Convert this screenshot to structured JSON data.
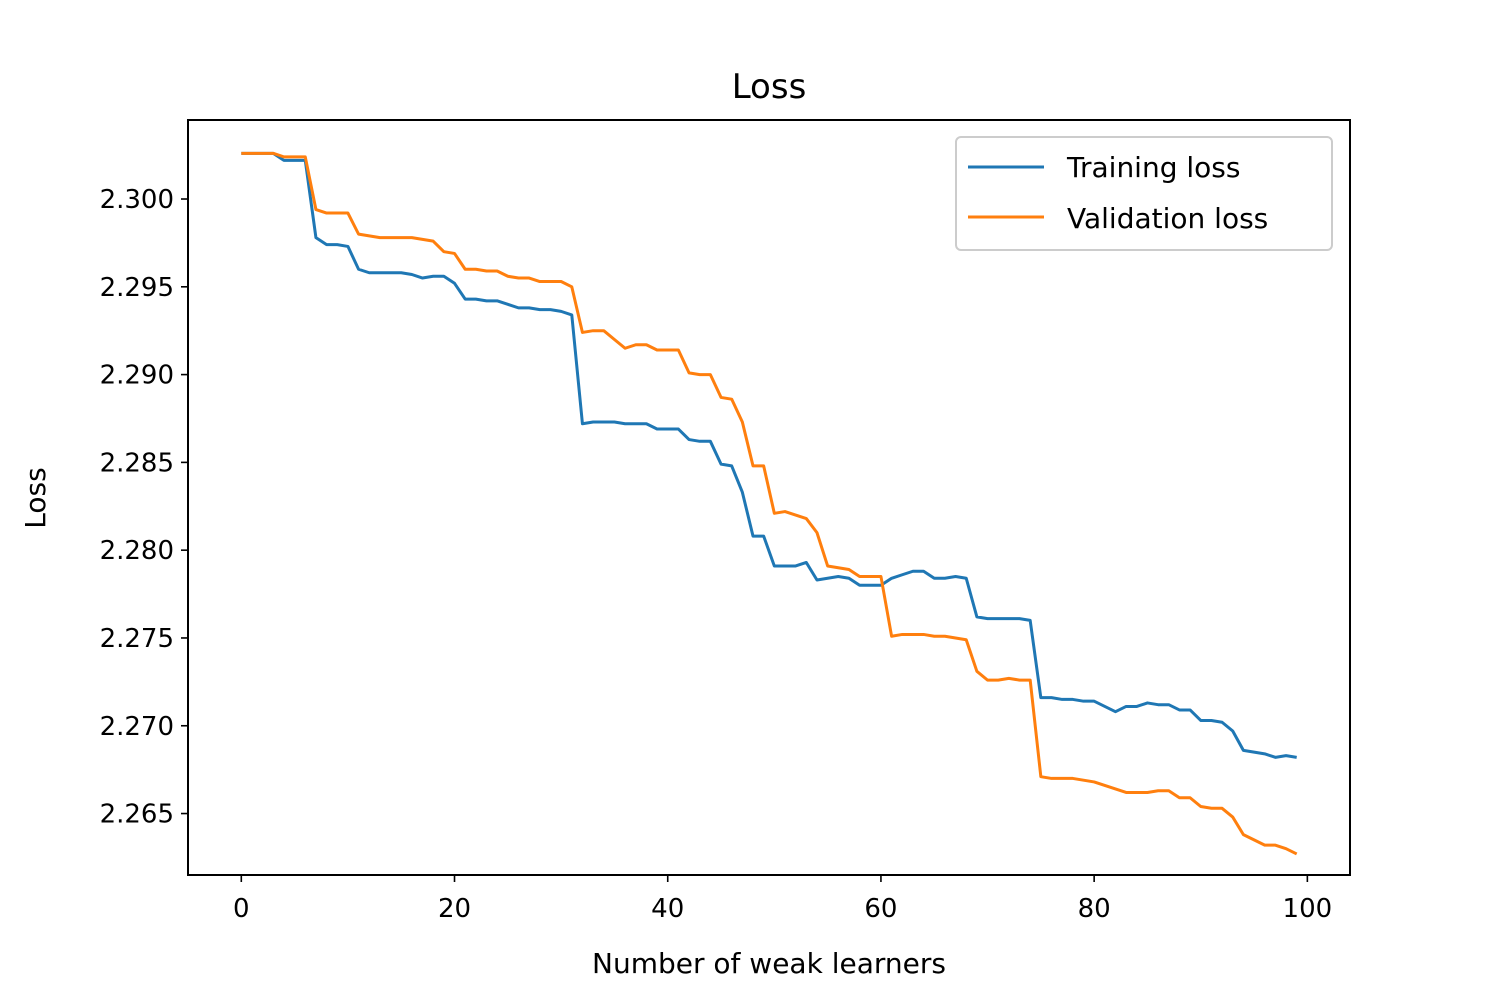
{
  "chart_data": {
    "type": "line",
    "title": "Loss",
    "xlabel": "Number of weak learners",
    "ylabel": "Loss",
    "xlim": [
      -5,
      104
    ],
    "ylim": [
      2.2615,
      2.3045
    ],
    "xticks": [
      0,
      20,
      40,
      60,
      80,
      100
    ],
    "yticks": [
      2.265,
      2.27,
      2.275,
      2.28,
      2.285,
      2.29,
      2.295,
      2.3
    ],
    "grid": false,
    "legend_position": "top-right",
    "series": [
      {
        "name": "Training loss",
        "color": "#1f77b4",
        "values": [
          2.3026,
          2.3026,
          2.3026,
          2.3026,
          2.3022,
          2.3022,
          2.3022,
          2.2978,
          2.2974,
          2.2974,
          2.2973,
          2.296,
          2.2958,
          2.2958,
          2.2958,
          2.2958,
          2.2957,
          2.2955,
          2.2956,
          2.2956,
          2.2952,
          2.2943,
          2.2943,
          2.2942,
          2.2942,
          2.294,
          2.2938,
          2.2938,
          2.2937,
          2.2937,
          2.2936,
          2.2934,
          2.2872,
          2.2873,
          2.2873,
          2.2873,
          2.2872,
          2.2872,
          2.2872,
          2.2869,
          2.2869,
          2.2869,
          2.2863,
          2.2862,
          2.2862,
          2.2849,
          2.2848,
          2.2833,
          2.2808,
          2.2808,
          2.2791,
          2.2791,
          2.2791,
          2.2793,
          2.2783,
          2.2784,
          2.2785,
          2.2784,
          2.278,
          2.278,
          2.278,
          2.2784,
          2.2786,
          2.2788,
          2.2788,
          2.2784,
          2.2784,
          2.2785,
          2.2784,
          2.2762,
          2.2761,
          2.2761,
          2.2761,
          2.2761,
          2.276,
          2.2716,
          2.2716,
          2.2715,
          2.2715,
          2.2714,
          2.2714,
          2.2711,
          2.2708,
          2.2711,
          2.2711,
          2.2713,
          2.2712,
          2.2712,
          2.2709,
          2.2709,
          2.2703,
          2.2703,
          2.2702,
          2.2697,
          2.2686,
          2.2685,
          2.2684,
          2.2682,
          2.2683,
          2.2682
        ]
      },
      {
        "name": "Validation loss",
        "color": "#ff7f0e",
        "values": [
          2.3026,
          2.3026,
          2.3026,
          2.3026,
          2.3024,
          2.3024,
          2.3024,
          2.2994,
          2.2992,
          2.2992,
          2.2992,
          2.298,
          2.2979,
          2.2978,
          2.2978,
          2.2978,
          2.2978,
          2.2977,
          2.2976,
          2.297,
          2.2969,
          2.296,
          2.296,
          2.2959,
          2.2959,
          2.2956,
          2.2955,
          2.2955,
          2.2953,
          2.2953,
          2.2953,
          2.295,
          2.2924,
          2.2925,
          2.2925,
          2.292,
          2.2915,
          2.2917,
          2.2917,
          2.2914,
          2.2914,
          2.2914,
          2.2901,
          2.29,
          2.29,
          2.2887,
          2.2886,
          2.2873,
          2.2848,
          2.2848,
          2.2821,
          2.2822,
          2.282,
          2.2818,
          2.281,
          2.2791,
          2.279,
          2.2789,
          2.2785,
          2.2785,
          2.2785,
          2.2751,
          2.2752,
          2.2752,
          2.2752,
          2.2751,
          2.2751,
          2.275,
          2.2749,
          2.2731,
          2.2726,
          2.2726,
          2.2727,
          2.2726,
          2.2726,
          2.2671,
          2.267,
          2.267,
          2.267,
          2.2669,
          2.2668,
          2.2666,
          2.2664,
          2.2662,
          2.2662,
          2.2662,
          2.2663,
          2.2663,
          2.2659,
          2.2659,
          2.2654,
          2.2653,
          2.2653,
          2.2648,
          2.2638,
          2.2635,
          2.2632,
          2.2632,
          2.263,
          2.2627
        ]
      }
    ]
  }
}
